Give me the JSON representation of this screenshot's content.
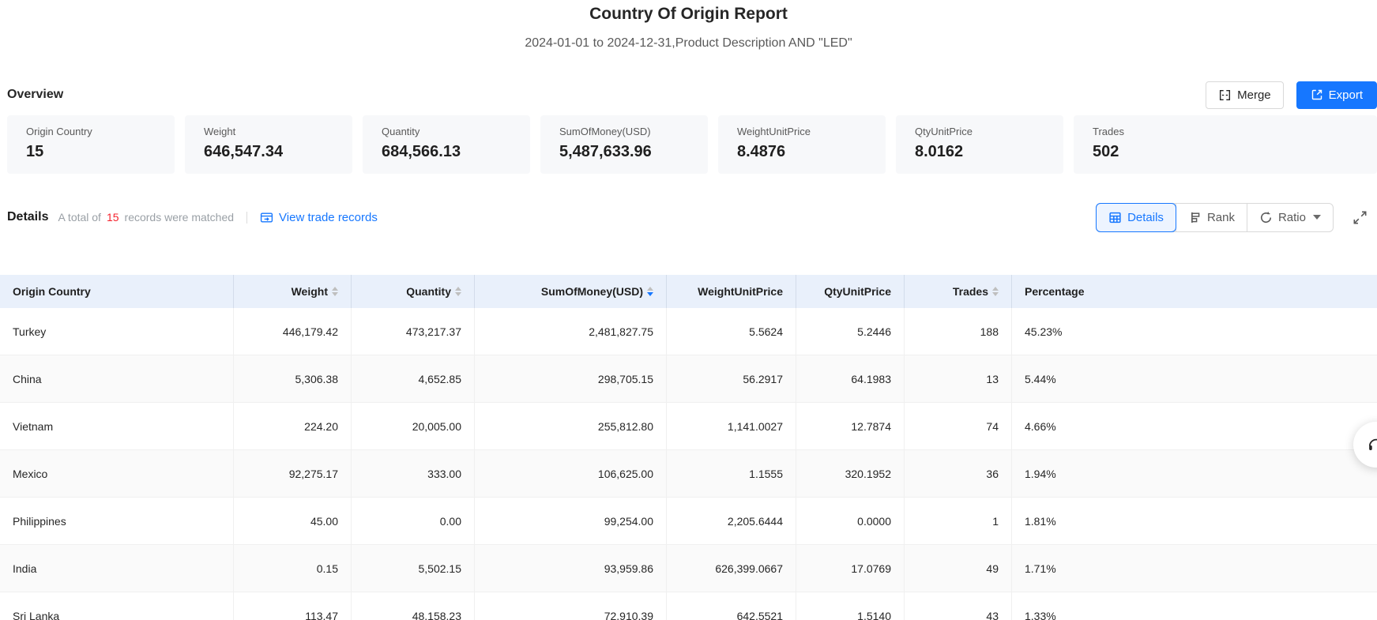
{
  "page": {
    "title": "Country Of Origin Report",
    "subtitle": "2024-01-01 to 2024-12-31,Product Description AND \"LED\""
  },
  "overview": {
    "heading": "Overview",
    "merge_label": "Merge",
    "export_label": "Export",
    "cards": [
      {
        "label": "Origin Country",
        "value": "15"
      },
      {
        "label": "Weight",
        "value": "646,547.34"
      },
      {
        "label": "Quantity",
        "value": "684,566.13"
      },
      {
        "label": "SumOfMoney(USD)",
        "value": "5,487,633.96"
      },
      {
        "label": "WeightUnitPrice",
        "value": "8.4876"
      },
      {
        "label": "QtyUnitPrice",
        "value": "8.0162"
      },
      {
        "label": "Trades",
        "value": "502"
      }
    ]
  },
  "details": {
    "heading": "Details",
    "summary_prefix": "A total of",
    "summary_count": "15",
    "summary_suffix": "records were matched",
    "view_trade_records_label": "View trade records",
    "tabs": [
      {
        "label": "Details",
        "active": true
      },
      {
        "label": "Rank",
        "active": false
      },
      {
        "label": "Ratio",
        "active": false
      }
    ]
  },
  "table": {
    "columns": [
      {
        "label": "Origin Country",
        "sortable": false,
        "align": "left"
      },
      {
        "label": "Weight",
        "sortable": true,
        "sort": "none",
        "align": "right"
      },
      {
        "label": "Quantity",
        "sortable": true,
        "sort": "none",
        "align": "right"
      },
      {
        "label": "SumOfMoney(USD)",
        "sortable": true,
        "sort": "desc",
        "align": "right"
      },
      {
        "label": "WeightUnitPrice",
        "sortable": false,
        "align": "right"
      },
      {
        "label": "QtyUnitPrice",
        "sortable": false,
        "align": "right"
      },
      {
        "label": "Trades",
        "sortable": true,
        "sort": "none",
        "align": "right"
      },
      {
        "label": "Percentage",
        "sortable": false,
        "align": "left"
      }
    ],
    "rows": [
      [
        "Turkey",
        "446,179.42",
        "473,217.37",
        "2,481,827.75",
        "5.5624",
        "5.2446",
        "188",
        "45.23%"
      ],
      [
        "China",
        "5,306.38",
        "4,652.85",
        "298,705.15",
        "56.2917",
        "64.1983",
        "13",
        "5.44%"
      ],
      [
        "Vietnam",
        "224.20",
        "20,005.00",
        "255,812.80",
        "1,141.0027",
        "12.7874",
        "74",
        "4.66%"
      ],
      [
        "Mexico",
        "92,275.17",
        "333.00",
        "106,625.00",
        "1.1555",
        "320.1952",
        "36",
        "1.94%"
      ],
      [
        "Philippines",
        "45.00",
        "0.00",
        "99,254.00",
        "2,205.6444",
        "0.0000",
        "1",
        "1.81%"
      ],
      [
        "India",
        "0.15",
        "5,502.15",
        "93,959.86",
        "626,399.0667",
        "17.0769",
        "49",
        "1.71%"
      ],
      [
        "Sri Lanka",
        "113.47",
        "48,158.23",
        "72,910.39",
        "642.5521",
        "1.5140",
        "43",
        "1.33%"
      ]
    ]
  },
  "colors": {
    "accent_blue": "#1677ff",
    "active_tab_bg": "#edf4ff",
    "header_bg": "#e9f0fb",
    "card_bg": "#f7f8fa",
    "stripe_bg": "#fafafa",
    "count_red": "#f5222d",
    "text_secondary": "#595959"
  }
}
